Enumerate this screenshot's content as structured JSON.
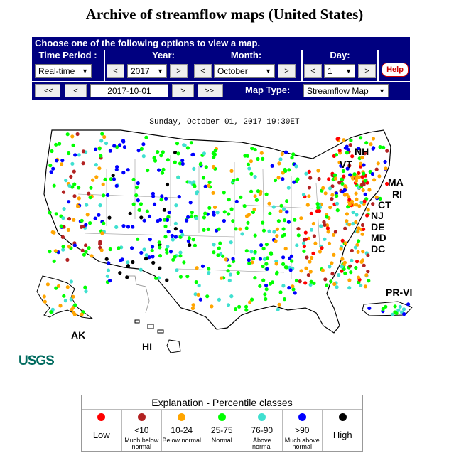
{
  "page_title": "Archive of streamflow maps (United States)",
  "panel_header": "Choose one of the following options to view a map.",
  "controls": {
    "time_period": {
      "label": "Time Period :",
      "value": "Real-time"
    },
    "year": {
      "label": "Year:",
      "value": "2017",
      "prev": "<",
      "next": ">"
    },
    "month": {
      "label": "Month:",
      "value": "October",
      "prev": "<",
      "next": ">"
    },
    "day": {
      "label": "Day:",
      "value": "1",
      "prev": "<",
      "next": ">"
    },
    "help_label": "Help"
  },
  "nav": {
    "first": "|<<",
    "prev": "<",
    "date": "2017-10-01",
    "next": ">",
    "last": ">>|",
    "map_type_label": "Map Type:",
    "map_type_value": "Streamflow Map"
  },
  "map": {
    "caption": "Sunday, October 01, 2017 19:30ET",
    "state_labels": [
      "NH",
      "VT",
      "MA",
      "RI",
      "CT",
      "NJ",
      "DE",
      "MD",
      "DC",
      "PR-VI",
      "AK",
      "HI"
    ],
    "logo": "USGS"
  },
  "legend": {
    "title": "Explanation - Percentile classes",
    "classes": [
      {
        "color": "#ff0000",
        "label": "Low",
        "sub": ""
      },
      {
        "color": "#b22222",
        "label": "<10",
        "sub": "Much below normal"
      },
      {
        "color": "#ffa500",
        "label": "10-24",
        "sub": "Below normal"
      },
      {
        "color": "#00ff00",
        "label": "25-75",
        "sub": "Normal"
      },
      {
        "color": "#40e0d0",
        "label": "76-90",
        "sub": "Above normal"
      },
      {
        "color": "#0000ff",
        "label": ">90",
        "sub": "Much above normal"
      },
      {
        "color": "#000000",
        "label": "High",
        "sub": ""
      }
    ]
  }
}
